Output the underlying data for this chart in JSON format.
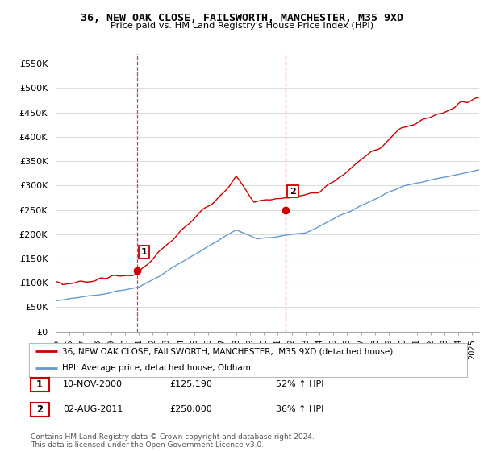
{
  "title": "36, NEW OAK CLOSE, FAILSWORTH, MANCHESTER, M35 9XD",
  "subtitle": "Price paid vs. HM Land Registry's House Price Index (HPI)",
  "ylabel_ticks": [
    "£0",
    "£50K",
    "£100K",
    "£150K",
    "£200K",
    "£250K",
    "£300K",
    "£350K",
    "£400K",
    "£450K",
    "£500K",
    "£550K"
  ],
  "ytick_values": [
    0,
    50000,
    100000,
    150000,
    200000,
    250000,
    300000,
    350000,
    400000,
    450000,
    500000,
    550000
  ],
  "ylim": [
    0,
    570000
  ],
  "sale1_x": 2000.87,
  "sale1_y": 125190,
  "sale1_label": "1",
  "sale1_date": "10-NOV-2000",
  "sale1_price": "£125,190",
  "sale1_hpi": "52% ↑ HPI",
  "sale2_x": 2011.585,
  "sale2_y": 250000,
  "sale2_label": "2",
  "sale2_date": "02-AUG-2011",
  "sale2_price": "£250,000",
  "sale2_hpi": "36% ↑ HPI",
  "red_line_color": "#cc0000",
  "blue_line_color": "#6699cc",
  "vline_color": "#cc0000",
  "grid_color": "#dddddd",
  "background_color": "#ffffff",
  "legend_line1": "36, NEW OAK CLOSE, FAILSWORTH, MANCHESTER,  M35 9XD (detached house)",
  "legend_line2": "HPI: Average price, detached house, Oldham",
  "footer": "Contains HM Land Registry data © Crown copyright and database right 2024.\nThis data is licensed under the Open Government Licence v3.0.",
  "xmin": 1995.0,
  "xmax": 2025.5
}
